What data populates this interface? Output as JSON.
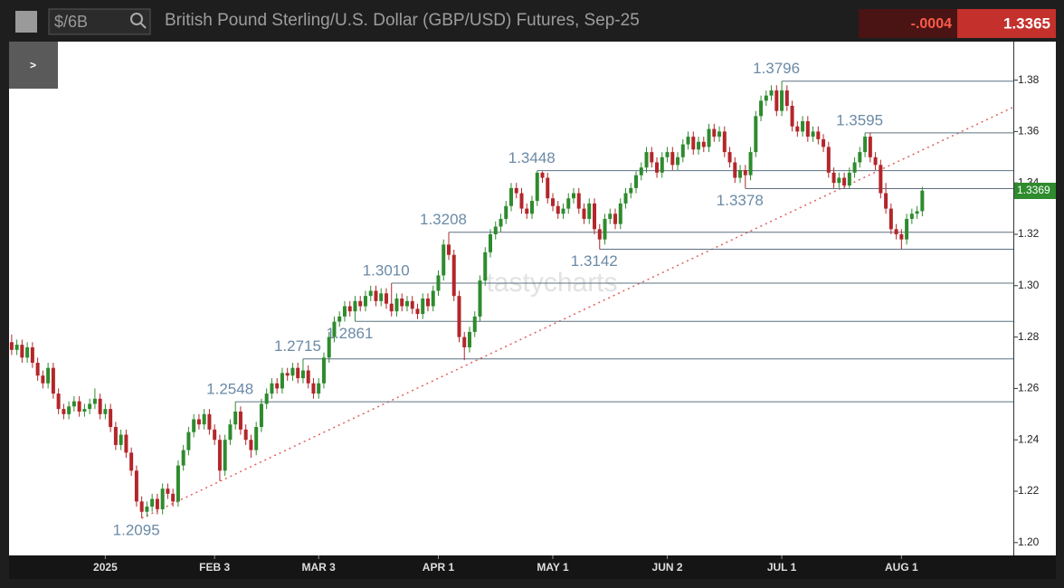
{
  "header": {
    "symbol": "$/6B",
    "title": "British Pound Sterling/U.S. Dollar (GBP/USD) Futures, Sep-25",
    "change": "-.0004",
    "price": "1.3365",
    "menu_button": ">"
  },
  "chart_data": {
    "type": "candlestick",
    "watermark": "tastycharts",
    "up_color": "#2e8b2e",
    "down_color": "#b3262a",
    "ohlc": [
      [
        1.278,
        1.281,
        1.273,
        1.275
      ],
      [
        1.275,
        1.279,
        1.273,
        1.277
      ],
      [
        1.277,
        1.279,
        1.27,
        1.272
      ],
      [
        1.272,
        1.278,
        1.27,
        1.276
      ],
      [
        1.276,
        1.278,
        1.268,
        1.27
      ],
      [
        1.27,
        1.272,
        1.263,
        1.265
      ],
      [
        1.265,
        1.267,
        1.26,
        1.262
      ],
      [
        1.262,
        1.27,
        1.26,
        1.268
      ],
      [
        1.268,
        1.27,
        1.256,
        1.258
      ],
      [
        1.258,
        1.26,
        1.25,
        1.252
      ],
      [
        1.252,
        1.254,
        1.248,
        1.25
      ],
      [
        1.25,
        1.255,
        1.248,
        1.253
      ],
      [
        1.253,
        1.257,
        1.251,
        1.255
      ],
      [
        1.255,
        1.257,
        1.249,
        1.251
      ],
      [
        1.251,
        1.254,
        1.249,
        1.252
      ],
      [
        1.252,
        1.256,
        1.25,
        1.254
      ],
      [
        1.254,
        1.26,
        1.252,
        1.256
      ],
      [
        1.256,
        1.258,
        1.248,
        1.25
      ],
      [
        1.25,
        1.254,
        1.248,
        1.252
      ],
      [
        1.252,
        1.254,
        1.243,
        1.245
      ],
      [
        1.245,
        1.247,
        1.236,
        1.238
      ],
      [
        1.238,
        1.244,
        1.236,
        1.242
      ],
      [
        1.242,
        1.244,
        1.233,
        1.235
      ],
      [
        1.235,
        1.237,
        1.226,
        1.228
      ],
      [
        1.228,
        1.23,
        1.214,
        1.216
      ],
      [
        1.216,
        1.218,
        1.2095,
        1.212
      ],
      [
        1.212,
        1.216,
        1.21,
        1.214
      ],
      [
        1.214,
        1.219,
        1.212,
        1.217
      ],
      [
        1.217,
        1.219,
        1.211,
        1.213
      ],
      [
        1.213,
        1.223,
        1.211,
        1.221
      ],
      [
        1.221,
        1.223,
        1.217,
        1.219
      ],
      [
        1.219,
        1.221,
        1.214,
        1.216
      ],
      [
        1.216,
        1.232,
        1.214,
        1.23
      ],
      [
        1.23,
        1.238,
        1.228,
        1.236
      ],
      [
        1.236,
        1.245,
        1.234,
        1.243
      ],
      [
        1.243,
        1.25,
        1.241,
        1.248
      ],
      [
        1.248,
        1.25,
        1.244,
        1.246
      ],
      [
        1.246,
        1.252,
        1.244,
        1.25
      ],
      [
        1.25,
        1.252,
        1.242,
        1.244
      ],
      [
        1.244,
        1.246,
        1.238,
        1.24
      ],
      [
        1.24,
        1.242,
        1.224,
        1.228
      ],
      [
        1.228,
        1.242,
        1.226,
        1.24
      ],
      [
        1.24,
        1.248,
        1.238,
        1.246
      ],
      [
        1.246,
        1.2548,
        1.244,
        1.251
      ],
      [
        1.251,
        1.253,
        1.242,
        1.244
      ],
      [
        1.244,
        1.246,
        1.238,
        1.24
      ],
      [
        1.24,
        1.242,
        1.233,
        1.236
      ],
      [
        1.236,
        1.247,
        1.234,
        1.245
      ],
      [
        1.245,
        1.256,
        1.243,
        1.254
      ],
      [
        1.254,
        1.26,
        1.252,
        1.258
      ],
      [
        1.258,
        1.264,
        1.256,
        1.262
      ],
      [
        1.262,
        1.264,
        1.258,
        1.26
      ],
      [
        1.26,
        1.268,
        1.258,
        1.266
      ],
      [
        1.266,
        1.268,
        1.263,
        1.265
      ],
      [
        1.265,
        1.27,
        1.263,
        1.268
      ],
      [
        1.268,
        1.27,
        1.262,
        1.264
      ],
      [
        1.264,
        1.2715,
        1.262,
        1.267
      ],
      [
        1.267,
        1.269,
        1.26,
        1.262
      ],
      [
        1.262,
        1.264,
        1.256,
        1.258
      ],
      [
        1.258,
        1.264,
        1.256,
        1.262
      ],
      [
        1.262,
        1.274,
        1.26,
        1.272
      ],
      [
        1.272,
        1.282,
        1.27,
        1.28
      ],
      [
        1.28,
        1.288,
        1.278,
        1.286
      ],
      [
        1.286,
        1.29,
        1.284,
        1.288
      ],
      [
        1.288,
        1.294,
        1.286,
        1.292
      ],
      [
        1.292,
        1.294,
        1.288,
        1.29
      ],
      [
        1.29,
        1.296,
        1.2861,
        1.294
      ],
      [
        1.294,
        1.296,
        1.29,
        1.292
      ],
      [
        1.292,
        1.298,
        1.29,
        1.296
      ],
      [
        1.296,
        1.3,
        1.294,
        1.298
      ],
      [
        1.298,
        1.3,
        1.292,
        1.294
      ],
      [
        1.294,
        1.299,
        1.292,
        1.297
      ],
      [
        1.297,
        1.299,
        1.291,
        1.293
      ],
      [
        1.293,
        1.301,
        1.288,
        1.29
      ],
      [
        1.29,
        1.297,
        1.288,
        1.295
      ],
      [
        1.295,
        1.297,
        1.29,
        1.292
      ],
      [
        1.292,
        1.296,
        1.29,
        1.294
      ],
      [
        1.294,
        1.296,
        1.289,
        1.291
      ],
      [
        1.291,
        1.293,
        1.287,
        1.289
      ],
      [
        1.289,
        1.297,
        1.287,
        1.295
      ],
      [
        1.295,
        1.297,
        1.29,
        1.292
      ],
      [
        1.292,
        1.3,
        1.29,
        1.298
      ],
      [
        1.298,
        1.306,
        1.296,
        1.304
      ],
      [
        1.304,
        1.318,
        1.302,
        1.316
      ],
      [
        1.316,
        1.3208,
        1.31,
        1.312
      ],
      [
        1.312,
        1.314,
        1.294,
        1.296
      ],
      [
        1.296,
        1.298,
        1.278,
        1.28
      ],
      [
        1.28,
        1.282,
        1.271,
        1.276
      ],
      [
        1.276,
        1.284,
        1.274,
        1.282
      ],
      [
        1.282,
        1.29,
        1.28,
        1.288
      ],
      [
        1.288,
        1.304,
        1.286,
        1.302
      ],
      [
        1.302,
        1.315,
        1.3,
        1.313
      ],
      [
        1.313,
        1.322,
        1.311,
        1.32
      ],
      [
        1.32,
        1.325,
        1.318,
        1.323
      ],
      [
        1.323,
        1.328,
        1.321,
        1.326
      ],
      [
        1.326,
        1.333,
        1.324,
        1.331
      ],
      [
        1.331,
        1.34,
        1.329,
        1.338
      ],
      [
        1.338,
        1.34,
        1.334,
        1.336
      ],
      [
        1.336,
        1.338,
        1.328,
        1.33
      ],
      [
        1.33,
        1.332,
        1.326,
        1.328
      ],
      [
        1.328,
        1.335,
        1.326,
        1.333
      ],
      [
        1.333,
        1.3448,
        1.331,
        1.344
      ],
      [
        1.344,
        1.3445,
        1.34,
        1.342
      ],
      [
        1.342,
        1.344,
        1.332,
        1.334
      ],
      [
        1.334,
        1.336,
        1.329,
        1.331
      ],
      [
        1.331,
        1.333,
        1.326,
        1.328
      ],
      [
        1.328,
        1.332,
        1.326,
        1.33
      ],
      [
        1.33,
        1.336,
        1.328,
        1.334
      ],
      [
        1.334,
        1.338,
        1.332,
        1.336
      ],
      [
        1.336,
        1.338,
        1.328,
        1.33
      ],
      [
        1.33,
        1.332,
        1.324,
        1.326
      ],
      [
        1.326,
        1.334,
        1.324,
        1.332
      ],
      [
        1.332,
        1.334,
        1.32,
        1.322
      ],
      [
        1.322,
        1.324,
        1.3142,
        1.318
      ],
      [
        1.318,
        1.328,
        1.316,
        1.326
      ],
      [
        1.326,
        1.33,
        1.324,
        1.328
      ],
      [
        1.328,
        1.33,
        1.322,
        1.324
      ],
      [
        1.324,
        1.334,
        1.322,
        1.332
      ],
      [
        1.332,
        1.338,
        1.33,
        1.336
      ],
      [
        1.336,
        1.34,
        1.334,
        1.338
      ],
      [
        1.338,
        1.3445,
        1.336,
        1.343
      ],
      [
        1.343,
        1.348,
        1.341,
        1.346
      ],
      [
        1.346,
        1.354,
        1.344,
        1.352
      ],
      [
        1.352,
        1.354,
        1.346,
        1.348
      ],
      [
        1.348,
        1.35,
        1.342,
        1.344
      ],
      [
        1.344,
        1.352,
        1.342,
        1.35
      ],
      [
        1.35,
        1.354,
        1.348,
        1.352
      ],
      [
        1.352,
        1.354,
        1.345,
        1.347
      ],
      [
        1.347,
        1.352,
        1.345,
        1.35
      ],
      [
        1.35,
        1.357,
        1.348,
        1.355
      ],
      [
        1.355,
        1.36,
        1.353,
        1.358
      ],
      [
        1.358,
        1.36,
        1.351,
        1.353
      ],
      [
        1.353,
        1.358,
        1.351,
        1.356
      ],
      [
        1.356,
        1.358,
        1.352,
        1.354
      ],
      [
        1.354,
        1.363,
        1.352,
        1.361
      ],
      [
        1.361,
        1.363,
        1.356,
        1.358
      ],
      [
        1.358,
        1.362,
        1.356,
        1.36
      ],
      [
        1.36,
        1.362,
        1.35,
        1.352
      ],
      [
        1.352,
        1.354,
        1.346,
        1.348
      ],
      [
        1.348,
        1.35,
        1.34,
        1.342
      ],
      [
        1.342,
        1.347,
        1.34,
        1.345
      ],
      [
        1.345,
        1.347,
        1.3378,
        1.343
      ],
      [
        1.343,
        1.354,
        1.341,
        1.352
      ],
      [
        1.352,
        1.368,
        1.35,
        1.366
      ],
      [
        1.366,
        1.374,
        1.364,
        1.372
      ],
      [
        1.372,
        1.376,
        1.37,
        1.374
      ],
      [
        1.374,
        1.378,
        1.372,
        1.376
      ],
      [
        1.376,
        1.378,
        1.366,
        1.368
      ],
      [
        1.368,
        1.3796,
        1.366,
        1.376
      ],
      [
        1.376,
        1.378,
        1.368,
        1.37
      ],
      [
        1.37,
        1.372,
        1.36,
        1.362
      ],
      [
        1.362,
        1.364,
        1.358,
        1.36
      ],
      [
        1.36,
        1.366,
        1.358,
        1.364
      ],
      [
        1.364,
        1.366,
        1.356,
        1.358
      ],
      [
        1.358,
        1.362,
        1.356,
        1.36
      ],
      [
        1.36,
        1.362,
        1.355,
        1.357
      ],
      [
        1.357,
        1.359,
        1.352,
        1.354
      ],
      [
        1.354,
        1.356,
        1.342,
        1.344
      ],
      [
        1.344,
        1.346,
        1.338,
        1.34
      ],
      [
        1.34,
        1.344,
        1.338,
        1.342
      ],
      [
        1.342,
        1.344,
        1.3378,
        1.339
      ],
      [
        1.339,
        1.346,
        1.338,
        1.344
      ],
      [
        1.344,
        1.35,
        1.342,
        1.348
      ],
      [
        1.348,
        1.354,
        1.346,
        1.352
      ],
      [
        1.352,
        1.3595,
        1.35,
        1.358
      ],
      [
        1.358,
        1.3595,
        1.348,
        1.35
      ],
      [
        1.35,
        1.352,
        1.345,
        1.347
      ],
      [
        1.347,
        1.349,
        1.334,
        1.336
      ],
      [
        1.336,
        1.34,
        1.328,
        1.33
      ],
      [
        1.33,
        1.332,
        1.32,
        1.322
      ],
      [
        1.322,
        1.324,
        1.318,
        1.32
      ],
      [
        1.32,
        1.322,
        1.3142,
        1.318
      ],
      [
        1.318,
        1.328,
        1.316,
        1.326
      ],
      [
        1.326,
        1.33,
        1.324,
        1.328
      ],
      [
        1.328,
        1.331,
        1.326,
        1.329
      ],
      [
        1.329,
        1.3385,
        1.327,
        1.337
      ]
    ],
    "xlim": [
      -0.5,
      192.5
    ],
    "xticks": [
      {
        "value": 18,
        "label": "2025"
      },
      {
        "value": 39,
        "label": "FEB 3"
      },
      {
        "value": 59,
        "label": "MAR 3"
      },
      {
        "value": 82,
        "label": "APR 1"
      },
      {
        "value": 104,
        "label": "MAY 1"
      },
      {
        "value": 126,
        "label": "JUN 2"
      },
      {
        "value": 148,
        "label": "JUL 1"
      },
      {
        "value": 171,
        "label": "AUG 1"
      }
    ],
    "ylim": [
      1.195,
      1.395
    ],
    "yticks": [
      {
        "value": 1.2,
        "label": "1.20"
      },
      {
        "value": 1.22,
        "label": "1.22"
      },
      {
        "value": 1.24,
        "label": "1.24"
      },
      {
        "value": 1.26,
        "label": "1.26"
      },
      {
        "value": 1.28,
        "label": "1.28"
      },
      {
        "value": 1.3,
        "label": "1.30"
      },
      {
        "value": 1.32,
        "label": "1.32"
      },
      {
        "value": 1.34,
        "label": "1.34"
      },
      {
        "value": 1.36,
        "label": "1.36"
      },
      {
        "value": 1.38,
        "label": "1.38"
      }
    ],
    "levels": [
      {
        "value": 1.2095,
        "x": 25,
        "line": false
      },
      {
        "value": 1.2548,
        "x": 43,
        "line": true
      },
      {
        "value": 1.2715,
        "x": 56,
        "line": true
      },
      {
        "value": 1.2861,
        "x": 66,
        "line": true
      },
      {
        "value": 1.301,
        "label": "1.3010",
        "x": 73,
        "line": true
      },
      {
        "value": 1.3208,
        "x": 84,
        "line": true
      },
      {
        "value": 1.3448,
        "x": 101,
        "line": true
      },
      {
        "value": 1.3142,
        "x": 113,
        "line": true
      },
      {
        "value": 1.3378,
        "x": 141,
        "line": true
      },
      {
        "value": 1.3796,
        "x": 148,
        "line": true
      },
      {
        "value": 1.3595,
        "x": 164,
        "line": true
      }
    ],
    "level_color": "#5d7080",
    "label_color": "#6b8aa6",
    "trendline": {
      "x": [
        25,
        192.5
      ],
      "y": [
        1.2095,
        1.3695
      ],
      "color": "#e06060"
    },
    "price_marker": 1.3369,
    "price_marker_color": "#2e8b2e"
  }
}
